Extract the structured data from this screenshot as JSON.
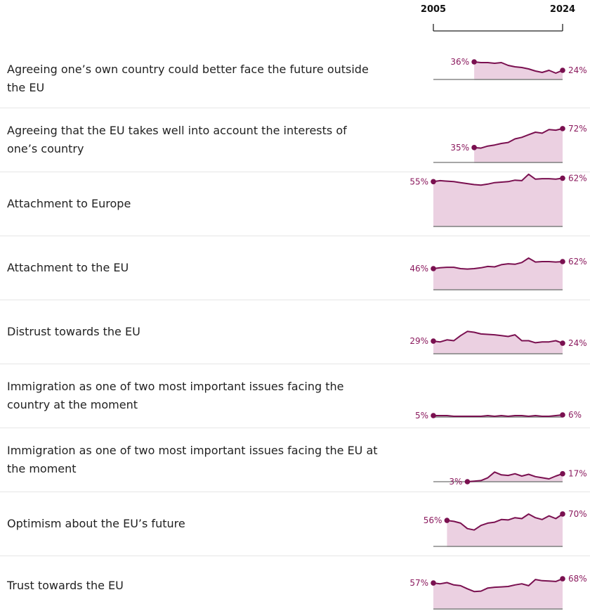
{
  "axis": {
    "xlim": [
      2005,
      2024
    ],
    "xticks": [
      2005,
      2024
    ]
  },
  "chart_data": [
    {
      "type": "area",
      "title": "Agreeing one’s own country could better face the future outside the EU",
      "color": "#7a1050",
      "ylim": [
        11,
        81
      ],
      "x": [
        2011,
        2012,
        2013,
        2014,
        2015,
        2016,
        2017,
        2018,
        2019,
        2020,
        2021,
        2022,
        2023,
        2024
      ],
      "values": [
        36,
        35,
        35,
        34,
        35,
        31,
        29,
        28,
        26,
        23,
        21,
        24,
        20,
        24
      ],
      "value_labels": [
        "36%",
        null,
        null,
        null,
        null,
        null,
        null,
        null,
        null,
        null,
        null,
        null,
        null,
        "24%"
      ]
    },
    {
      "type": "area",
      "title": "Agreeing that the EU takes well into account the interests of one’s country",
      "color": "#7a1050",
      "ylim": [
        6,
        102
      ],
      "x": [
        2011,
        2012,
        2013,
        2014,
        2015,
        2016,
        2017,
        2018,
        2019,
        2020,
        2021,
        2022,
        2023,
        2024
      ],
      "values": [
        35,
        34,
        38,
        40,
        43,
        45,
        52,
        55,
        60,
        65,
        63,
        70,
        69,
        72
      ],
      "value_labels": [
        "35%",
        null,
        null,
        null,
        null,
        null,
        null,
        null,
        null,
        null,
        null,
        null,
        null,
        "72%"
      ]
    },
    {
      "type": "area",
      "title": "Attachment to Europe",
      "color": "#7a1050",
      "ylim": [
        -36,
        64
      ],
      "x": [
        2005,
        2006,
        2007,
        2008,
        2009,
        2010,
        2011,
        2012,
        2013,
        2014,
        2015,
        2016,
        2017,
        2018,
        2019,
        2020,
        2021,
        2022,
        2023,
        2024
      ],
      "values": [
        55,
        57,
        56,
        55,
        53,
        51,
        49,
        48,
        50,
        53,
        54,
        55,
        58,
        57,
        70,
        60,
        61,
        61,
        60,
        62
      ],
      "value_labels": [
        "55%",
        null,
        null,
        null,
        null,
        null,
        null,
        null,
        null,
        null,
        null,
        null,
        null,
        null,
        null,
        null,
        null,
        null,
        null,
        "62%"
      ]
    },
    {
      "type": "area",
      "title": "Attachment to the EU",
      "color": "#7a1050",
      "ylim": [
        -2,
        110
      ],
      "x": [
        2005,
        2006,
        2007,
        2008,
        2009,
        2010,
        2011,
        2012,
        2013,
        2014,
        2015,
        2016,
        2017,
        2018,
        2019,
        2020,
        2021,
        2022,
        2023,
        2024
      ],
      "values": [
        46,
        48,
        49,
        49,
        46,
        45,
        46,
        48,
        51,
        50,
        55,
        57,
        56,
        60,
        70,
        61,
        62,
        62,
        61,
        62
      ],
      "value_labels": [
        "46%",
        null,
        null,
        null,
        null,
        null,
        null,
        null,
        null,
        null,
        null,
        null,
        null,
        null,
        null,
        null,
        null,
        null,
        null,
        "62%"
      ]
    },
    {
      "type": "area",
      "title": "Distrust towards the EU",
      "color": "#7a1050",
      "ylim": [
        -1,
        116
      ],
      "x": [
        2005,
        2006,
        2007,
        2008,
        2009,
        2010,
        2011,
        2012,
        2013,
        2014,
        2015,
        2016,
        2017,
        2018,
        2019,
        2020,
        2021,
        2022,
        2023,
        2024
      ],
      "values": [
        29,
        27,
        32,
        30,
        42,
        52,
        50,
        46,
        45,
        44,
        42,
        40,
        44,
        30,
        30,
        25,
        27,
        27,
        30,
        24
      ],
      "value_labels": [
        "29%",
        null,
        null,
        null,
        null,
        null,
        null,
        null,
        null,
        null,
        null,
        null,
        null,
        null,
        null,
        null,
        null,
        null,
        null,
        "24%"
      ]
    },
    {
      "type": "area",
      "title": "Immigration as one of two most important issues facing the country at the moment",
      "color": "#7a1050",
      "ylim": [
        3,
        73
      ],
      "x": [
        2005,
        2006,
        2007,
        2008,
        2009,
        2010,
        2011,
        2012,
        2013,
        2014,
        2015,
        2016,
        2017,
        2018,
        2019,
        2020,
        2021,
        2022,
        2023,
        2024
      ],
      "values": [
        5,
        5,
        5,
        4,
        4,
        4,
        4,
        4,
        5,
        4,
        5,
        4,
        5,
        5,
        4,
        5,
        4,
        4,
        5,
        6
      ],
      "value_labels": [
        "5%",
        null,
        null,
        null,
        null,
        null,
        null,
        null,
        null,
        null,
        null,
        null,
        null,
        null,
        null,
        null,
        null,
        null,
        null,
        "6%"
      ]
    },
    {
      "type": "area",
      "title": "Immigration as one of two most important issues facing the EU at the moment",
      "color": "#7a1050",
      "ylim": [
        3,
        90
      ],
      "x": [
        2010,
        2011,
        2012,
        2013,
        2014,
        2015,
        2016,
        2017,
        2018,
        2019,
        2020,
        2021,
        2022,
        2023,
        2024
      ],
      "values": [
        3,
        4,
        5,
        10,
        20,
        15,
        14,
        17,
        13,
        16,
        12,
        10,
        8,
        13,
        17
      ],
      "value_labels": [
        "3%",
        null,
        null,
        null,
        null,
        null,
        null,
        null,
        null,
        null,
        null,
        null,
        null,
        null,
        "17%"
      ]
    },
    {
      "type": "area",
      "title": "Optimism about the EU’s future",
      "color": "#7a1050",
      "ylim": [
        -1,
        107
      ],
      "x": [
        2007,
        2008,
        2009,
        2010,
        2011,
        2012,
        2013,
        2014,
        2015,
        2016,
        2017,
        2018,
        2019,
        2020,
        2021,
        2022,
        2023,
        2024
      ],
      "values": [
        56,
        54,
        50,
        38,
        35,
        45,
        50,
        52,
        58,
        57,
        62,
        60,
        70,
        62,
        58,
        66,
        60,
        70
      ],
      "value_labels": [
        "56%",
        null,
        null,
        null,
        null,
        null,
        null,
        null,
        null,
        null,
        null,
        null,
        null,
        null,
        null,
        null,
        null,
        "70%"
      ]
    },
    {
      "type": "area",
      "title": "Trust towards the EU",
      "color": "#7a1050",
      "ylim": [
        -10,
        117
      ],
      "x": [
        2005,
        2006,
        2007,
        2008,
        2009,
        2010,
        2011,
        2012,
        2013,
        2014,
        2015,
        2016,
        2017,
        2018,
        2019,
        2020,
        2021,
        2022,
        2023,
        2024
      ],
      "values": [
        57,
        55,
        58,
        52,
        50,
        42,
        35,
        36,
        44,
        46,
        47,
        48,
        52,
        55,
        50,
        66,
        63,
        62,
        61,
        68
      ],
      "value_labels": [
        "57%",
        null,
        null,
        null,
        null,
        null,
        null,
        null,
        null,
        null,
        null,
        null,
        null,
        null,
        null,
        null,
        null,
        null,
        null,
        "68%"
      ]
    }
  ]
}
